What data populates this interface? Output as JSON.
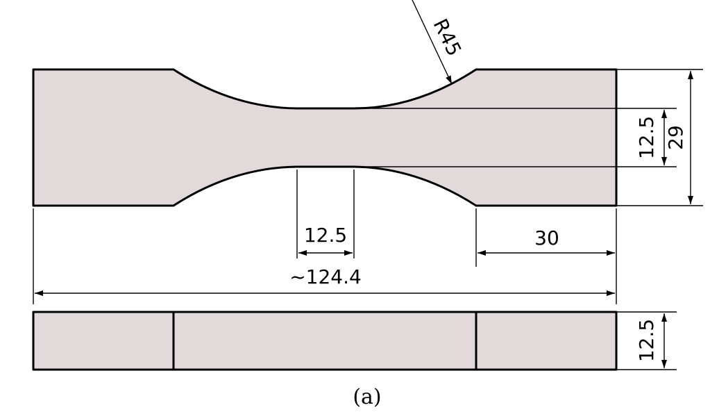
{
  "drawing": {
    "dimensions": {
      "radius": "R45",
      "gauge_width": "12.5",
      "grip_width": "29",
      "gauge_length": "12.5",
      "grip_length": "30",
      "total_length": "~124.4",
      "thickness": "12.5"
    },
    "caption": "(a)",
    "colors": {
      "part_fill": "#e2dada",
      "line": "#000000"
    }
  }
}
